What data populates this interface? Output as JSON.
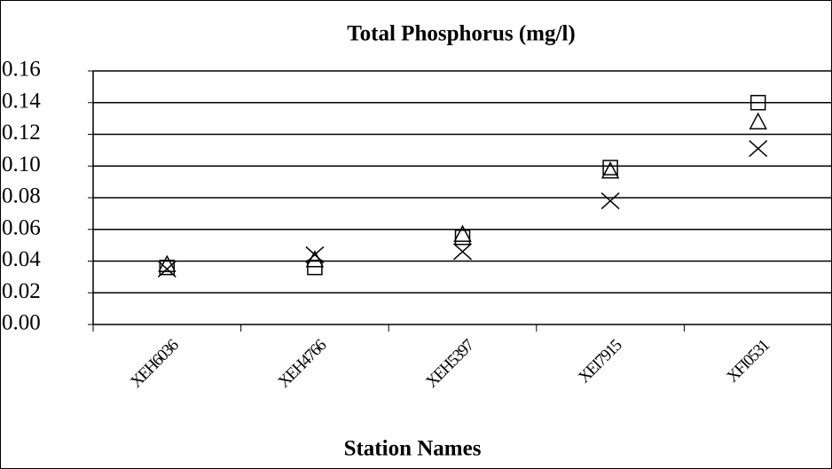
{
  "chart_data": {
    "type": "scatter",
    "title": "Total Phosphorus (mg/l)",
    "x_label": "Station Names",
    "categories": [
      "XEH6036",
      "XEH4766",
      "XEH5397",
      "XEI7915",
      "XFI0531"
    ],
    "series": [
      {
        "marker": "square",
        "color": "#000000",
        "values": [
          0.036,
          0.036,
          0.055,
          0.099,
          0.14
        ]
      },
      {
        "marker": "triangle",
        "color": "#000000",
        "values": [
          0.038,
          0.041,
          0.057,
          0.097,
          0.128
        ]
      },
      {
        "marker": "cross",
        "color": "#000000",
        "values": [
          0.035,
          0.044,
          0.046,
          0.078,
          0.111
        ]
      }
    ],
    "ylim": [
      0,
      0.16
    ],
    "yticks": [
      {
        "value": 0,
        "label": "0.00"
      },
      {
        "value": 0.02,
        "label": "0.02"
      },
      {
        "value": 0.04,
        "label": "0.04"
      },
      {
        "value": 0.06,
        "label": "0.06"
      },
      {
        "value": 0.08,
        "label": "0.08"
      },
      {
        "value": 0.1,
        "label": "0.10"
      },
      {
        "value": 0.12,
        "label": "0.12"
      },
      {
        "value": 0.14,
        "label": "0.14"
      },
      {
        "value": 0.16,
        "label": "0.16"
      }
    ],
    "grid": true
  }
}
